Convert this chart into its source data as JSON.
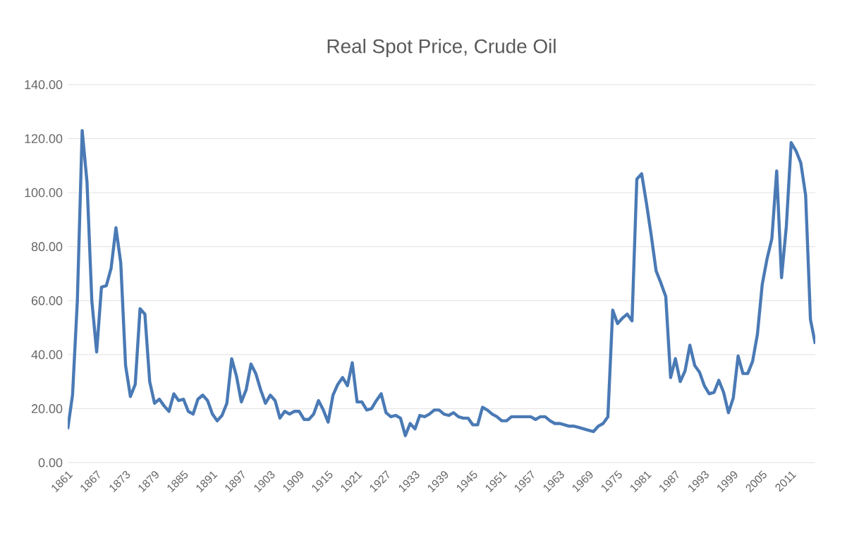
{
  "chart_data": {
    "type": "line",
    "title": "Real Spot Price, Crude Oil",
    "categories": [
      "1861",
      null,
      null,
      null,
      null,
      null,
      "1867",
      null,
      null,
      null,
      null,
      null,
      "1873",
      null,
      null,
      null,
      null,
      null,
      "1879",
      null,
      null,
      null,
      null,
      null,
      "1885",
      null,
      null,
      null,
      null,
      null,
      "1891",
      null,
      null,
      null,
      null,
      null,
      "1897",
      null,
      null,
      null,
      null,
      null,
      "1903",
      null,
      null,
      null,
      null,
      null,
      "1909",
      null,
      null,
      null,
      null,
      null,
      "1915",
      null,
      null,
      null,
      null,
      null,
      "1921",
      null,
      null,
      null,
      null,
      null,
      "1927",
      null,
      null,
      null,
      null,
      null,
      "1933",
      null,
      null,
      null,
      null,
      null,
      "1939",
      null,
      null,
      null,
      null,
      null,
      "1945",
      null,
      null,
      null,
      null,
      null,
      "1951",
      null,
      null,
      null,
      null,
      null,
      "1957",
      null,
      null,
      null,
      null,
      null,
      "1963",
      null,
      null,
      null,
      null,
      null,
      "1969",
      null,
      null,
      null,
      null,
      null,
      "1975",
      null,
      null,
      null,
      null,
      null,
      "1981",
      null,
      null,
      null,
      null,
      null,
      "1987",
      null,
      null,
      null,
      null,
      null,
      "1993",
      null,
      null,
      null,
      null,
      null,
      "1999",
      null,
      null,
      null,
      null,
      null,
      "2005",
      null,
      null,
      null,
      null,
      null,
      "2011",
      null,
      null,
      null,
      null,
      null
    ],
    "series": [
      {
        "color": "#4a7ab5",
        "values": [
          12.4,
          25,
          60,
          123,
          104,
          60,
          41,
          65,
          65.5,
          72,
          87,
          74,
          36,
          24.5,
          29,
          57,
          55,
          30,
          22,
          23.5,
          21,
          19,
          25.5,
          23,
          23.5,
          19,
          18,
          23.5,
          25,
          23,
          18,
          15.5,
          17.5,
          22,
          38.5,
          32,
          22.5,
          27,
          36.5,
          33,
          27,
          22,
          25,
          23,
          16.5,
          19,
          18,
          19,
          19,
          16,
          16,
          18,
          23,
          19.5,
          15,
          25,
          29,
          31.5,
          28.5,
          37,
          22.5,
          22.5,
          19.5,
          20,
          23,
          25.5,
          18.5,
          17,
          17.5,
          16.5,
          10,
          14.5,
          12.5,
          17.5,
          17,
          18,
          19.5,
          19.5,
          18,
          17.5,
          18.5,
          17,
          16.5,
          16.5,
          14,
          14,
          20.5,
          19.5,
          18,
          17,
          15.5,
          15.5,
          17,
          17,
          17,
          17,
          17,
          16,
          17,
          17,
          15.5,
          14.5,
          14.5,
          14,
          13.5,
          13.5,
          13,
          12.5,
          12,
          11.5,
          13.5,
          14.5,
          17,
          56.5,
          51.5,
          53.5,
          55,
          52.5,
          105,
          107,
          96,
          84,
          71,
          66.5,
          61.5,
          31.5,
          38.5,
          30,
          34,
          43.5,
          36,
          33.5,
          28.5,
          25.5,
          26,
          30.5,
          26,
          18.5,
          24,
          39.5,
          33,
          33,
          37.5,
          47.5,
          66,
          75.5,
          83,
          108,
          68.5,
          87.5,
          118.5,
          115.5,
          111,
          99,
          53,
          44
        ]
      }
    ],
    "ylim": [
      0,
      140
    ],
    "yticks": [
      {
        "value": 0,
        "label": "0.00"
      },
      {
        "value": 20,
        "label": "20.00"
      },
      {
        "value": 40,
        "label": "40.00"
      },
      {
        "value": 60,
        "label": "60.00"
      },
      {
        "value": 80,
        "label": "80.00"
      },
      {
        "value": 100,
        "label": "100.00"
      },
      {
        "value": 120,
        "label": "120.00"
      },
      {
        "value": 140,
        "label": "140.00"
      }
    ],
    "grid": "y",
    "marker": "none",
    "line_style": "solid"
  }
}
